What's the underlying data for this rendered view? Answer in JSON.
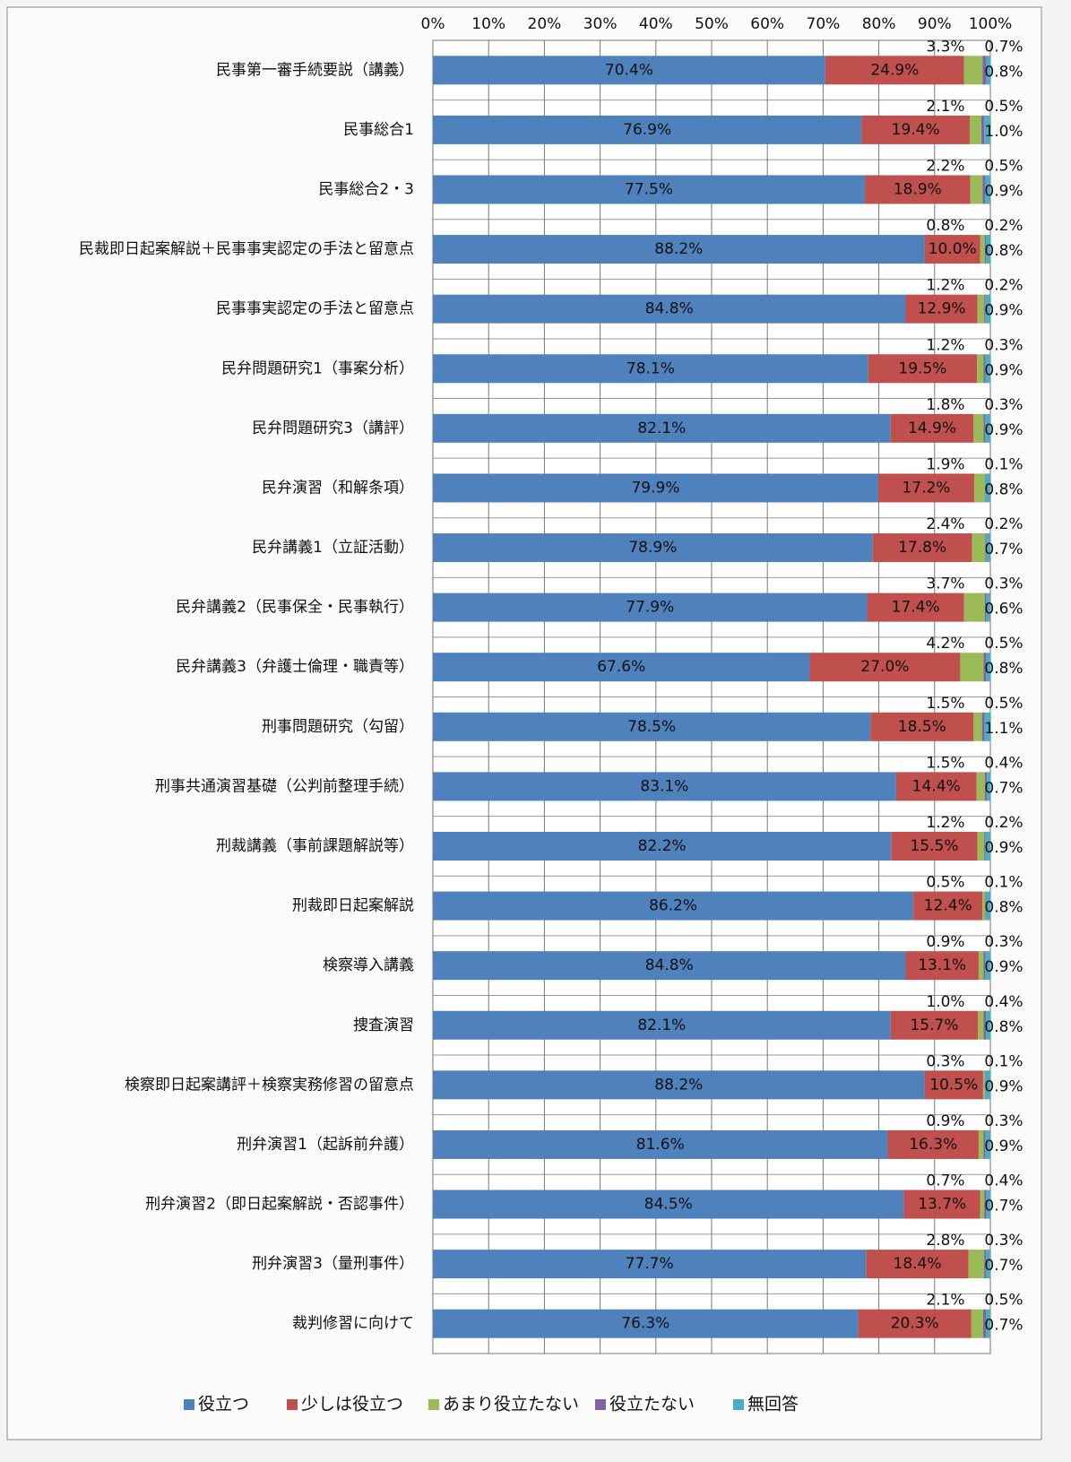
{
  "chart_data": {
    "type": "stacked_bar_horizontal",
    "categories": [
      "民事第一審手続要説（講義）",
      "民事総合1",
      "民事総合2・3",
      "民裁即日起案解説＋民事事実認定の手法と留意点",
      "民事事実認定の手法と留意点",
      "民弁問題研究1（事案分析）",
      "民弁問題研究3（講評）",
      "民弁演習（和解条項）",
      "民弁講義1（立証活動）",
      "民弁講義2（民事保全・民事執行）",
      "民弁講義3（弁護士倫理・職責等）",
      "刑事問題研究（勾留）",
      "刑事共通演習基礎（公判前整理手続）",
      "刑裁講義（事前課題解説等）",
      "刑裁即日起案解説",
      "検察導入講義",
      "捜査演習",
      "検察即日起案講評＋検察実務修習の留意点",
      "刑弁演習1（起訴前弁護）",
      "刑弁演習2（即日起案解説・否認事件）",
      "刑弁演習3（量刑事件）",
      "裁判修習に向けて"
    ],
    "series": [
      {
        "name": "役立つ",
        "color": "#4f81bd",
        "values": [
          70.4,
          76.9,
          77.5,
          88.2,
          84.8,
          78.1,
          82.1,
          79.9,
          78.9,
          77.9,
          67.6,
          78.5,
          83.1,
          82.2,
          86.2,
          84.8,
          82.1,
          88.2,
          81.6,
          84.5,
          77.7,
          76.3
        ],
        "value_labels": [
          "70.4%",
          "76.9%",
          "77.5%",
          "88.2%",
          "84.8%",
          "78.1%",
          "82.1%",
          "79.9%",
          "78.9%",
          "77.9%",
          "67.6%",
          "78.5%",
          "83.1%",
          "82.2%",
          "86.2%",
          "84.8%",
          "82.1%",
          "88.2%",
          "81.6%",
          "84.5%",
          "77.7%",
          "76.3%"
        ]
      },
      {
        "name": "少しは役立つ",
        "color": "#c0504d",
        "values": [
          24.9,
          19.4,
          18.9,
          10.0,
          12.9,
          19.5,
          14.9,
          17.2,
          17.8,
          17.4,
          27.0,
          18.5,
          14.4,
          15.5,
          12.4,
          13.1,
          15.7,
          10.5,
          16.3,
          13.7,
          18.4,
          20.3
        ],
        "value_labels": [
          "24.9%",
          "19.4%",
          "18.9%",
          "10.0%",
          "12.9%",
          "19.5%",
          "14.9%",
          "17.2%",
          "17.8%",
          "17.4%",
          "27.0%",
          "18.5%",
          "14.4%",
          "15.5%",
          "12.4%",
          "13.1%",
          "15.7%",
          "10.5%",
          "16.3%",
          "13.7%",
          "18.4%",
          "20.3%"
        ]
      },
      {
        "name": "あまり役立たない",
        "color": "#9bbb59",
        "values": [
          3.3,
          2.1,
          2.2,
          0.8,
          1.2,
          1.2,
          1.8,
          1.9,
          2.4,
          3.7,
          4.2,
          1.5,
          1.5,
          1.2,
          0.5,
          0.9,
          1.0,
          0.3,
          0.9,
          0.7,
          2.8,
          2.1
        ],
        "value_labels": [
          "3.3%",
          "2.1%",
          "2.2%",
          "0.8%",
          "1.2%",
          "1.2%",
          "1.8%",
          "1.9%",
          "2.4%",
          "3.7%",
          "4.2%",
          "1.5%",
          "1.5%",
          "1.2%",
          "0.5%",
          "0.9%",
          "1.0%",
          "0.3%",
          "0.9%",
          "0.7%",
          "2.8%",
          "2.1%"
        ]
      },
      {
        "name": "役立たない",
        "color": "#8064a2",
        "values": [
          0.7,
          0.5,
          0.5,
          0.2,
          0.2,
          0.3,
          0.3,
          0.1,
          0.2,
          0.3,
          0.5,
          0.5,
          0.4,
          0.2,
          0.1,
          0.3,
          0.4,
          0.1,
          0.3,
          0.4,
          0.3,
          0.5
        ],
        "value_labels": [
          "0.7%",
          "0.5%",
          "0.5%",
          "0.2%",
          "0.2%",
          "0.3%",
          "0.3%",
          "0.1%",
          "0.2%",
          "0.3%",
          "0.5%",
          "0.5%",
          "0.4%",
          "0.2%",
          "0.1%",
          "0.3%",
          "0.4%",
          "0.1%",
          "0.3%",
          "0.4%",
          "0.3%",
          "0.5%"
        ]
      },
      {
        "name": "無回答",
        "color": "#4bacc6",
        "values": [
          0.8,
          1.0,
          0.9,
          0.8,
          0.9,
          0.9,
          0.9,
          0.8,
          0.7,
          0.6,
          0.8,
          1.1,
          0.7,
          0.9,
          0.8,
          0.9,
          0.8,
          0.9,
          0.9,
          0.7,
          0.7,
          0.7
        ],
        "value_labels": [
          "0.8%",
          "1.0%",
          "0.9%",
          "0.8%",
          "0.9%",
          "0.9%",
          "0.9%",
          "0.8%",
          "0.7%",
          "0.6%",
          "0.8%",
          "1.1%",
          "0.7%",
          "0.9%",
          "0.8%",
          "0.9%",
          "0.8%",
          "0.9%",
          "0.9%",
          "0.7%",
          "0.7%",
          "0.7%"
        ]
      }
    ],
    "xlim": [
      0,
      100
    ],
    "xticks": [
      {
        "value": 0,
        "label": "0%"
      },
      {
        "value": 10,
        "label": "10%"
      },
      {
        "value": 20,
        "label": "20%"
      },
      {
        "value": 30,
        "label": "30%"
      },
      {
        "value": 40,
        "label": "40%"
      },
      {
        "value": 50,
        "label": "50%"
      },
      {
        "value": 60,
        "label": "60%"
      },
      {
        "value": 70,
        "label": "70%"
      },
      {
        "value": 80,
        "label": "80%"
      },
      {
        "value": 90,
        "label": "90%"
      },
      {
        "value": 100,
        "label": "100%"
      }
    ],
    "grid": true,
    "legend": "bottom"
  }
}
